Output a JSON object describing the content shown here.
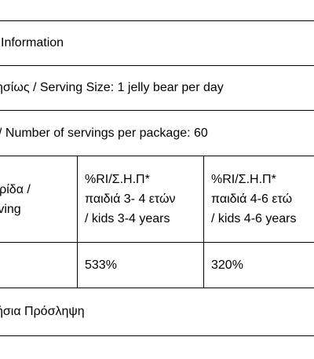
{
  "rows": {
    "title": "l Information",
    "serving_size": "ησίως / Serving Size: 1 jelly bear per day",
    "servings_per_package": "/ Number of servings per package: 60",
    "header": {
      "col1": "ερίδα /\nrving",
      "col2": "%RI/Σ.Η.Π*\nπαιδιά 3- 4 ετών\n/ kids 3-4 years",
      "col3": "%RI/Σ.Η.Π*\nπαιδιά 4-6 ετώ\n/ kids 4-6 years"
    },
    "values": {
      "col1": "",
      "col2": "533%",
      "col3": "320%"
    },
    "footer": "ήσια Πρόσληψη"
  }
}
